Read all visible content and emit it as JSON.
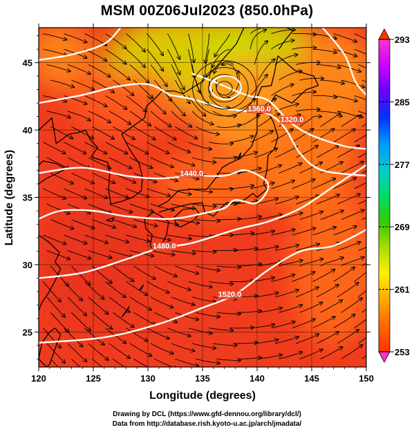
{
  "title": "MSM 00Z06Jul2023 (850.0hPa)",
  "axes": {
    "xlabel": "Longitude (degrees)",
    "ylabel": "Latitude  (degrees)",
    "x_ticks": [
      120,
      125,
      130,
      135,
      140,
      145,
      150
    ],
    "y_ticks": [
      25,
      30,
      35,
      40,
      45
    ],
    "xlim": [
      120,
      150
    ],
    "ylim": [
      22.4,
      47.6
    ]
  },
  "colorbar": {
    "ticks": [
      293,
      285,
      277,
      269,
      261,
      253
    ],
    "range": [
      253,
      293
    ],
    "colors": [
      "#ff33cc",
      "#cc00ff",
      "#6600ff",
      "#0033ff",
      "#0099ff",
      "#00cccc",
      "#00dd66",
      "#33cc00",
      "#aadd00",
      "#ffee00",
      "#ffaa00",
      "#ff6600",
      "#ff3300"
    ]
  },
  "field": {
    "background": "#f03c1e",
    "patches": [
      {
        "lon": 122,
        "lat": 45.5,
        "rlon": 3,
        "rlat": 2.5,
        "color": "#ff8a1a"
      },
      {
        "lon": 133,
        "lat": 45,
        "rlon": 7,
        "rlat": 3.5,
        "color": "#d8d800"
      },
      {
        "lon": 140,
        "lat": 46.5,
        "rlon": 5,
        "rlat": 2,
        "color": "#c8e000"
      },
      {
        "lon": 139,
        "lat": 42,
        "rlon": 5,
        "rlat": 3.5,
        "color": "#ffa020"
      },
      {
        "lon": 147,
        "lat": 43.5,
        "rlon": 4,
        "rlat": 4,
        "color": "#ff8c1a"
      },
      {
        "lon": 144,
        "lat": 38,
        "rlon": 5,
        "rlat": 4,
        "color": "#ff7a1a"
      },
      {
        "lon": 128,
        "lat": 42,
        "rlon": 5,
        "rlat": 2.5,
        "color": "#ff5a1e"
      },
      {
        "lon": 136,
        "lat": 36,
        "rlon": 5,
        "rlat": 2.5,
        "color": "#ff6a1a"
      },
      {
        "lon": 147,
        "lat": 30,
        "rlon": 4,
        "rlat": 6,
        "color": "#ff6a1a"
      },
      {
        "lon": 125,
        "lat": 30,
        "rlon": 5,
        "rlat": 5,
        "color": "#e8341e"
      }
    ]
  },
  "contours": [
    {
      "label": "1440.0",
      "label_lon": 134,
      "label_lat": 36.6,
      "points": [
        [
          120,
          36.8
        ],
        [
          124,
          37.2
        ],
        [
          128,
          36.6
        ],
        [
          131,
          36.4
        ],
        [
          134,
          36.6
        ],
        [
          137,
          36.6
        ],
        [
          139,
          37.0
        ],
        [
          141,
          36.0
        ],
        [
          140,
          34.6
        ],
        [
          138,
          34.8
        ],
        [
          137,
          34.2
        ],
        [
          135,
          33.8
        ],
        [
          132,
          33.4
        ],
        [
          128,
          33.6
        ],
        [
          125,
          34.0
        ],
        [
          122,
          34.0
        ],
        [
          120,
          33.4
        ]
      ]
    },
    {
      "label": "1480.0",
      "label_lon": 131.5,
      "label_lat": 31.2,
      "points": [
        [
          120,
          29.0
        ],
        [
          124,
          29.4
        ],
        [
          128,
          30.4
        ],
        [
          131,
          31.2
        ],
        [
          134,
          31.6
        ],
        [
          138,
          32.6
        ],
        [
          141,
          33.2
        ],
        [
          144,
          34.2
        ],
        [
          147,
          35.8
        ],
        [
          150,
          37.4
        ]
      ]
    },
    {
      "label": "1520.0",
      "label_lon": 137.5,
      "label_lat": 27.6,
      "points": [
        [
          120,
          24.2
        ],
        [
          126,
          24.6
        ],
        [
          131,
          25.6
        ],
        [
          135,
          26.8
        ],
        [
          138,
          27.8
        ],
        [
          141,
          29.6
        ],
        [
          144,
          31.0
        ],
        [
          147,
          31.4
        ],
        [
          150,
          32.6
        ]
      ]
    },
    {
      "label": "1360.0",
      "label_lon": 140.2,
      "label_lat": 41.4,
      "points": [
        [
          132,
          42.6
        ],
        [
          134,
          42.3
        ],
        [
          137,
          41.6
        ],
        [
          139,
          41.4
        ],
        [
          141,
          41.2
        ],
        [
          142.5,
          40.2
        ],
        [
          144,
          38.2
        ],
        [
          146,
          37.0
        ],
        [
          150,
          36.6
        ]
      ]
    },
    {
      "label": "1320.0",
      "label_lon": 143.2,
      "label_lat": 40.6,
      "points": [
        [
          134,
          44.2
        ],
        [
          136,
          43.6
        ],
        [
          139,
          42.6
        ],
        [
          141,
          42.2
        ],
        [
          143,
          40.6
        ],
        [
          145,
          39.6
        ],
        [
          148,
          38.8
        ],
        [
          150,
          38.6
        ]
      ]
    },
    {
      "label": "",
      "label_lon": 0,
      "label_lat": 0,
      "points": [
        [
          120,
          42.0
        ],
        [
          124,
          42.6
        ],
        [
          127,
          43.2
        ],
        [
          130,
          43.4
        ],
        [
          132,
          42.6
        ]
      ]
    },
    {
      "label": "",
      "label_lon": 0,
      "label_lat": 0,
      "points": [
        [
          120,
          45.2
        ],
        [
          123,
          45.6
        ],
        [
          126,
          46.4
        ],
        [
          127.5,
          47.6
        ]
      ]
    },
    {
      "label": "",
      "label_lon": 0,
      "label_lat": 0,
      "points": [
        [
          146,
          47.6
        ],
        [
          148,
          45.6
        ],
        [
          149,
          43.6
        ],
        [
          150,
          42.6
        ]
      ]
    }
  ],
  "vortex": {
    "lon": 137,
    "lat": 43.1
  },
  "coastlines": [
    {
      "name": "honshu",
      "points": [
        [
          130.9,
          34.3
        ],
        [
          131.8,
          34.7
        ],
        [
          132.8,
          35.5
        ],
        [
          134,
          35.6
        ],
        [
          135.4,
          35.6
        ],
        [
          136.1,
          36.3
        ],
        [
          136.8,
          37.2
        ],
        [
          137.4,
          37.5
        ],
        [
          138.5,
          37.9
        ],
        [
          139.5,
          38.8
        ],
        [
          140.0,
          39.9
        ],
        [
          140.0,
          41.2
        ],
        [
          141.0,
          41.3
        ],
        [
          141.5,
          40.6
        ],
        [
          141.9,
          39.5
        ],
        [
          141.6,
          38.6
        ],
        [
          141.0,
          38.1
        ],
        [
          140.9,
          37.0
        ],
        [
          140.6,
          36.0
        ],
        [
          140.9,
          35.6
        ],
        [
          140.0,
          35.0
        ],
        [
          139.6,
          35.3
        ],
        [
          139.0,
          34.9
        ],
        [
          138.3,
          34.6
        ],
        [
          137.2,
          34.6
        ],
        [
          136.8,
          34.3
        ],
        [
          136.0,
          33.6
        ],
        [
          135.2,
          33.9
        ],
        [
          135.0,
          34.6
        ],
        [
          133.8,
          34.5
        ],
        [
          132.3,
          34.2
        ],
        [
          131.0,
          33.9
        ]
      ]
    },
    {
      "name": "kyushu",
      "points": [
        [
          129.7,
          33.4
        ],
        [
          130.5,
          33.9
        ],
        [
          131.0,
          33.7
        ],
        [
          131.9,
          33.2
        ],
        [
          131.7,
          32.2
        ],
        [
          131.2,
          31.4
        ],
        [
          130.6,
          31.0
        ],
        [
          130.2,
          31.4
        ],
        [
          130.4,
          32.2
        ],
        [
          129.8,
          32.7
        ],
        [
          129.7,
          33.4
        ]
      ]
    },
    {
      "name": "shikoku",
      "points": [
        [
          132.4,
          33.5
        ],
        [
          133.2,
          34.1
        ],
        [
          134.3,
          34.2
        ],
        [
          134.7,
          33.8
        ],
        [
          134.2,
          33.3
        ],
        [
          133.0,
          32.8
        ],
        [
          132.6,
          32.9
        ],
        [
          132.4,
          33.5
        ]
      ]
    },
    {
      "name": "hokkaido",
      "points": [
        [
          140.0,
          41.5
        ],
        [
          141.1,
          41.8
        ],
        [
          141.7,
          42.6
        ],
        [
          143.2,
          42.0
        ],
        [
          144.5,
          43.0
        ],
        [
          145.6,
          43.3
        ],
        [
          145.2,
          44.0
        ],
        [
          143.5,
          44.4
        ],
        [
          141.9,
          45.5
        ],
        [
          141.6,
          44.3
        ],
        [
          141.3,
          43.3
        ],
        [
          140.4,
          43.2
        ],
        [
          140.0,
          42.4
        ],
        [
          140.0,
          41.5
        ]
      ]
    },
    {
      "name": "sakhalin",
      "points": [
        [
          142.0,
          46.0
        ],
        [
          142.5,
          46.6
        ],
        [
          143.3,
          47.4
        ],
        [
          142.7,
          47.6
        ]
      ]
    },
    {
      "name": "korea",
      "points": [
        [
          124.3,
          40.0
        ],
        [
          124.7,
          39.3
        ],
        [
          125.4,
          38.7
        ],
        [
          124.8,
          38.0
        ],
        [
          126.3,
          37.6
        ],
        [
          126.5,
          36.8
        ],
        [
          126.4,
          35.5
        ],
        [
          126.6,
          34.5
        ],
        [
          127.6,
          34.7
        ],
        [
          128.6,
          35.0
        ],
        [
          129.4,
          35.5
        ],
        [
          129.5,
          36.5
        ],
        [
          129.2,
          37.5
        ],
        [
          128.3,
          38.6
        ],
        [
          127.6,
          39.7
        ],
        [
          128.5,
          40.2
        ],
        [
          129.7,
          40.9
        ],
        [
          129.9,
          41.8
        ],
        [
          130.6,
          42.3
        ]
      ]
    },
    {
      "name": "china-coast",
      "points": [
        [
          120.0,
          36.0
        ],
        [
          120.7,
          36.4
        ],
        [
          122.5,
          37.1
        ],
        [
          121.6,
          37.5
        ],
        [
          120.4,
          37.7
        ],
        [
          119.9,
          37.3
        ]
      ]
    },
    {
      "name": "liaodong",
      "points": [
        [
          120.0,
          40.0
        ],
        [
          121.2,
          40.9
        ],
        [
          121.6,
          39.0
        ],
        [
          122.8,
          39.7
        ],
        [
          123.6,
          39.8
        ],
        [
          124.3,
          40.0
        ]
      ]
    },
    {
      "name": "primorye",
      "points": [
        [
          130.6,
          42.3
        ],
        [
          131.3,
          42.9
        ],
        [
          132.4,
          42.9
        ],
        [
          133.2,
          42.7
        ],
        [
          135.0,
          43.6
        ],
        [
          136.6,
          45.0
        ],
        [
          138.1,
          46.4
        ],
        [
          138.8,
          47.6
        ]
      ]
    },
    {
      "name": "shanghai-coast",
      "points": [
        [
          120.0,
          32.2
        ],
        [
          120.9,
          31.7
        ],
        [
          121.9,
          30.9
        ],
        [
          121.5,
          30.2
        ],
        [
          122.0,
          29.7
        ],
        [
          121.5,
          28.8
        ],
        [
          120.9,
          27.9
        ],
        [
          120.3,
          27.2
        ],
        [
          120.0,
          26.6
        ]
      ]
    },
    {
      "name": "taiwan",
      "points": [
        [
          121.5,
          25.3
        ],
        [
          122.0,
          24.8
        ],
        [
          121.6,
          24.0
        ],
        [
          121.0,
          22.6
        ],
        [
          120.7,
          22.4
        ],
        [
          120.0,
          23.0
        ],
        [
          120.3,
          24.2
        ],
        [
          121.0,
          25.0
        ],
        [
          121.5,
          25.3
        ]
      ]
    },
    {
      "name": "ryukyu",
      "points": [
        [
          127.6,
          26.1
        ],
        [
          128.3,
          26.9
        ],
        [
          128.0,
          26.5
        ],
        [
          127.6,
          26.1
        ]
      ]
    },
    {
      "name": "amami",
      "points": [
        [
          129.2,
          28.1
        ],
        [
          129.6,
          28.5
        ],
        [
          129.4,
          28.2
        ],
        [
          129.2,
          28.1
        ]
      ]
    },
    {
      "name": "jeju",
      "points": [
        [
          126.2,
          33.3
        ],
        [
          126.9,
          33.5
        ],
        [
          126.7,
          33.2
        ],
        [
          126.2,
          33.3
        ]
      ]
    },
    {
      "name": "sado",
      "points": [
        [
          138.2,
          37.8
        ],
        [
          138.5,
          38.3
        ],
        [
          138.4,
          37.9
        ],
        [
          138.2,
          37.8
        ]
      ]
    }
  ],
  "footer": {
    "line1": "Drawing by DCL (https://www.gfd-dennou.org/library/dcl/)",
    "line2": "Data from http://database.rish.kyoto-u.ac.jp/arch/jmadata/"
  }
}
